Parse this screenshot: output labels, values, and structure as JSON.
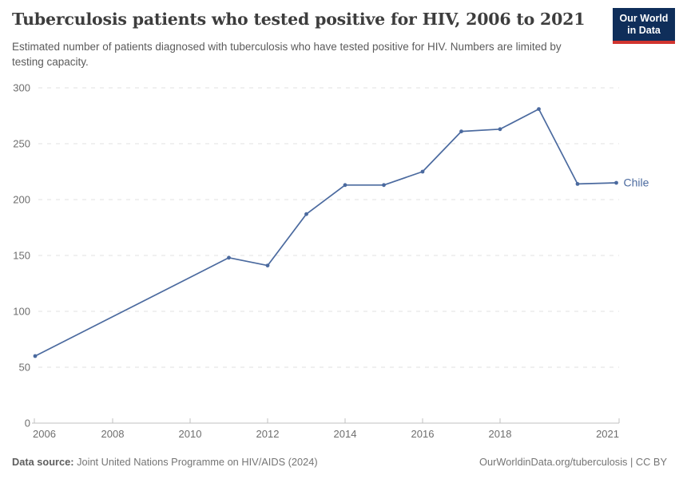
{
  "header": {
    "title": "Tuberculosis patients who tested positive for HIV, 2006 to 2021",
    "subtitle": "Estimated number of patients diagnosed with tuberculosis who have tested positive for HIV. Numbers are limited by testing capacity.",
    "logo": {
      "line1": "Our World",
      "line2": "in Data",
      "background_color": "#0f2e5a",
      "bar_color": "#d1342f"
    }
  },
  "chart_data": {
    "type": "line",
    "title": "Tuberculosis patients who tested positive for HIV, 2006 to 2021",
    "xlabel": "",
    "ylabel": "",
    "x": [
      2006,
      2011,
      2012,
      2013,
      2014,
      2015,
      2016,
      2017,
      2018,
      2019,
      2020,
      2021
    ],
    "series": [
      {
        "name": "Chile",
        "color": "#4b6a9f",
        "values": [
          60,
          148,
          141,
          187,
          213,
          213,
          225,
          261,
          263,
          281,
          214,
          215
        ]
      }
    ],
    "xticks": [
      2006,
      2008,
      2010,
      2012,
      2014,
      2016,
      2018,
      2021
    ],
    "yticks": [
      0,
      50,
      100,
      150,
      200,
      250,
      300
    ],
    "xlim": [
      2006,
      2021
    ],
    "ylim": [
      0,
      300
    ],
    "grid": "horizontal-dashed",
    "legend_position": "end-of-line-label",
    "marker": "dot"
  },
  "footer": {
    "source_label": "Data source:",
    "source_text": " Joint United Nations Programme on HIV/AIDS (2024)",
    "link_text": "OurWorldinData.org/tuberculosis | CC BY"
  }
}
